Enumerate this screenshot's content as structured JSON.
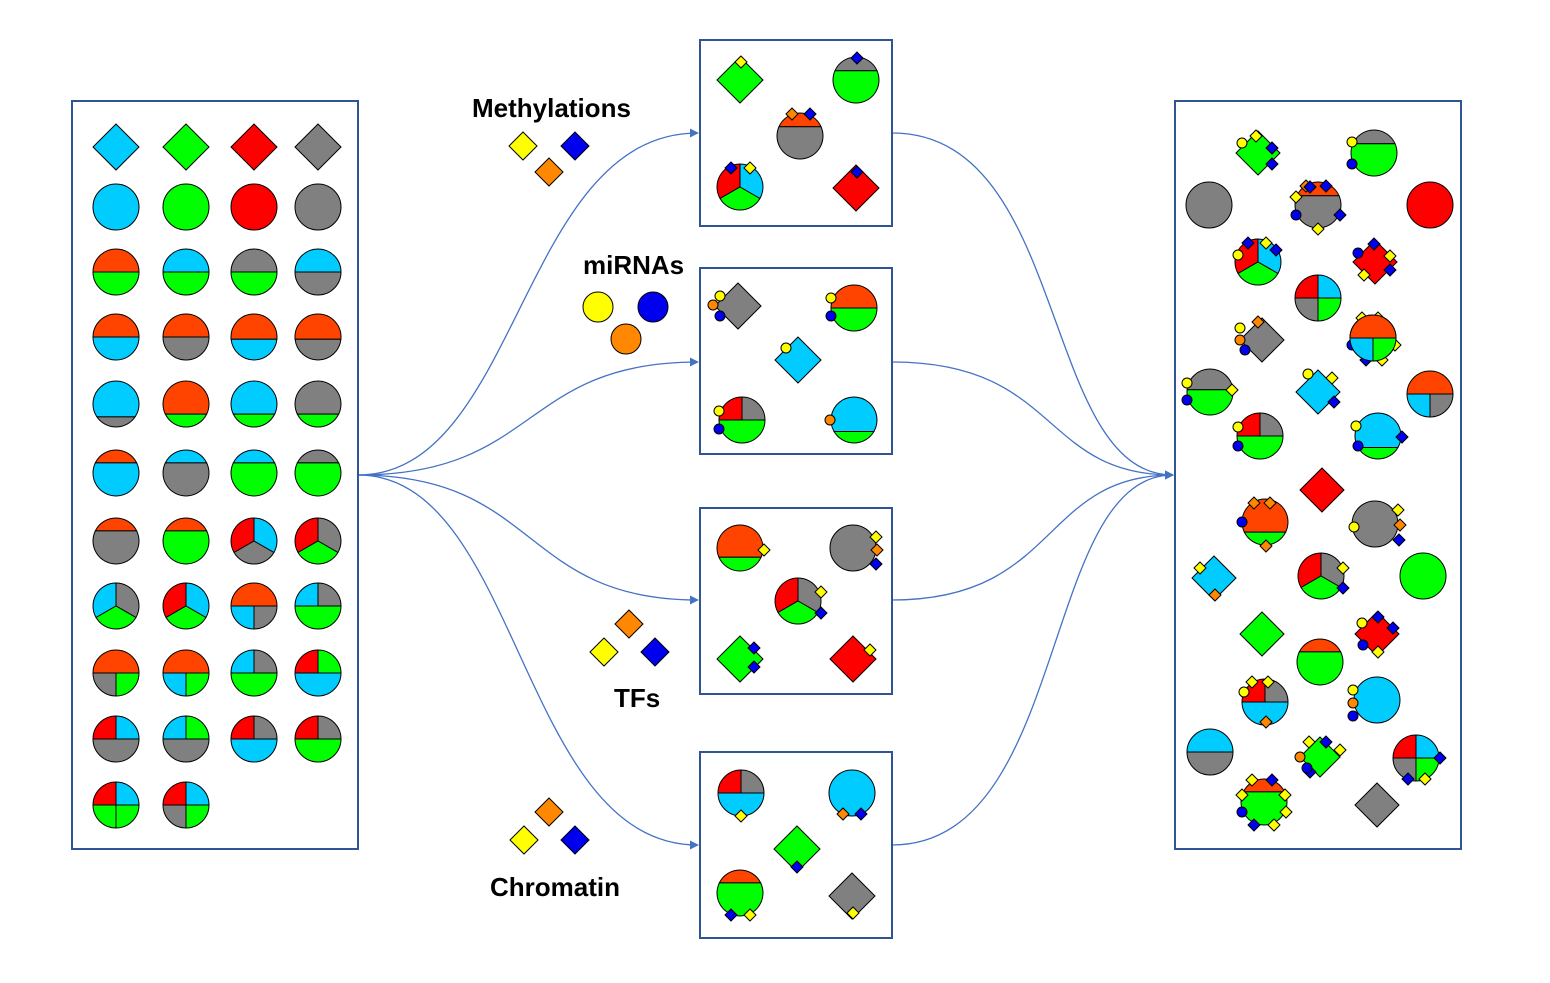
{
  "colors": {
    "cyan": "#00CCFF",
    "green": "#00FF00",
    "red": "#FF0000",
    "gray": "#808080",
    "orange": "#FF4400",
    "yellow": "#FFFF00",
    "marker_orange": "#FF8800",
    "blue": "#0000EE",
    "frame": "#2F5597",
    "arrow": "#4472C4"
  },
  "labels": {
    "methylations": "Methylations",
    "mirnas": "miRNAs",
    "tfs": "TFs",
    "chromatin": "Chromatin"
  },
  "icons": {
    "methylation_marks": [
      "yellow-diamond",
      "blue-diamond",
      "orange-diamond"
    ],
    "mirna_marks": [
      "yellow-circle",
      "blue-circle",
      "orange-circle"
    ],
    "tf_marks": [
      "orange-diamond",
      "yellow-diamond",
      "blue-diamond"
    ],
    "chromatin_marks": [
      "orange-diamond",
      "yellow-diamond",
      "blue-diamond"
    ]
  },
  "sections": [
    "cell-type-palette",
    "methylation-panel",
    "mirna-panel",
    "tf-panel",
    "chromatin-panel",
    "combined-output-panel"
  ]
}
